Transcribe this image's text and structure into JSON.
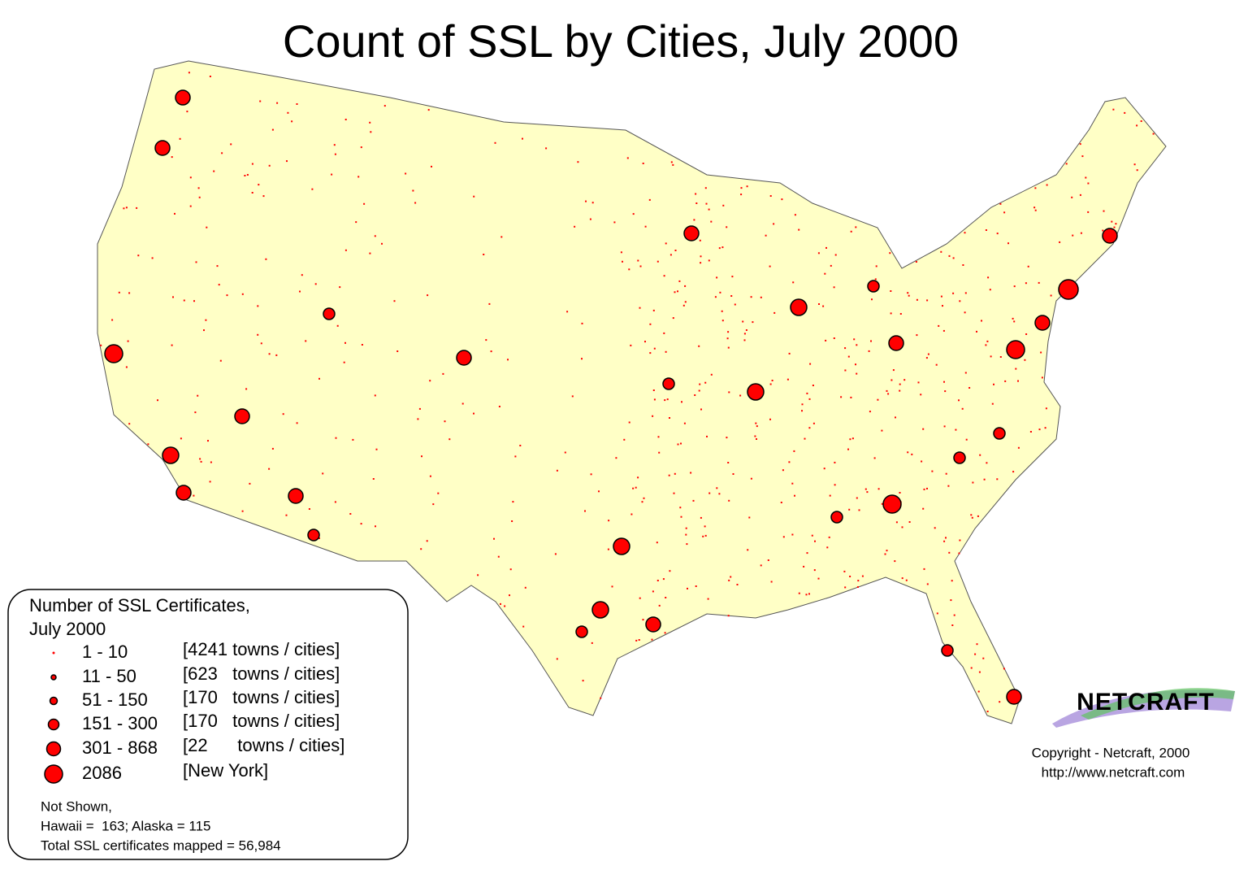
{
  "header": {
    "title": "Count of SSL by Cities, July 2000"
  },
  "legend": {
    "title_lines": [
      "Number of SSL Certificates,",
      "July 2000"
    ],
    "entries": [
      {
        "range": "1 - 10",
        "count": "[4241 towns / cities]"
      },
      {
        "range": "11 - 50",
        "count": "[623   towns / cities]"
      },
      {
        "range": "51 - 150",
        "count": "[170   towns / cities]"
      },
      {
        "range": "151 - 300",
        "count": "[170   towns / cities]"
      },
      {
        "range": "301 - 868",
        "count": "[22      towns / cities]"
      },
      {
        "range": "2086",
        "count": "[New York]"
      }
    ],
    "notes": [
      "Not Shown,",
      "Hawaii =  163; Alaska = 115",
      "Total SSL certificates mapped = 56,984"
    ]
  },
  "credit": {
    "logo": "NETCRAFT",
    "lines": [
      "Copyright - Netcraft, 2000",
      "http://www.netcraft.com"
    ]
  }
}
